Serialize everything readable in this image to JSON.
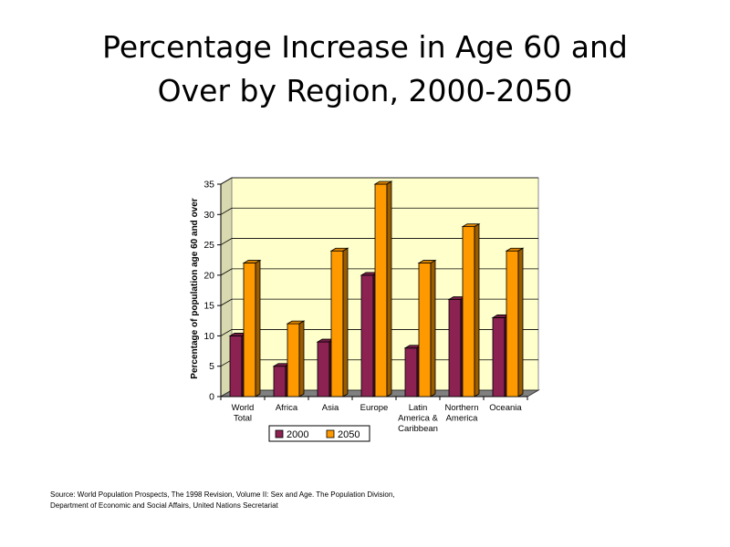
{
  "title_lines": [
    "Percentage Increase in Age 60 and",
    "Over by Region, 2000-2050"
  ],
  "source_lines": [
    "Source: World Population Prospects, The 1998 Revision, Volume II: Sex and Age. The Population Division,",
    "Department of Economic and Social Affairs, United Nations Secretariat"
  ],
  "colors": {
    "series_2000": "#8B2252",
    "series_2050": "#FF9900",
    "plot_back": "#FFFFCC",
    "floor": "#808080"
  },
  "chart_data": {
    "type": "bar",
    "title": "Percentage Increase in Age 60 and Over by Region, 2000-2050",
    "xlabel": "",
    "ylabel": "Percentage of population age 60 and over",
    "ylim": [
      0,
      35
    ],
    "yticks": [
      0,
      5,
      10,
      15,
      20,
      25,
      30,
      35
    ],
    "categories": [
      [
        "World",
        "Total"
      ],
      [
        "Africa"
      ],
      [
        "Asia"
      ],
      [
        "Europe"
      ],
      [
        "Latin",
        "America &",
        "Caribbean"
      ],
      [
        "Northern",
        "America"
      ],
      [
        "Oceania"
      ]
    ],
    "series": [
      {
        "name": "2000",
        "values": [
          10,
          5,
          9,
          20,
          8,
          16,
          13
        ]
      },
      {
        "name": "2050",
        "values": [
          22,
          12,
          24,
          35,
          22,
          28,
          24
        ]
      }
    ],
    "legend_position": "bottom",
    "grid": true
  }
}
